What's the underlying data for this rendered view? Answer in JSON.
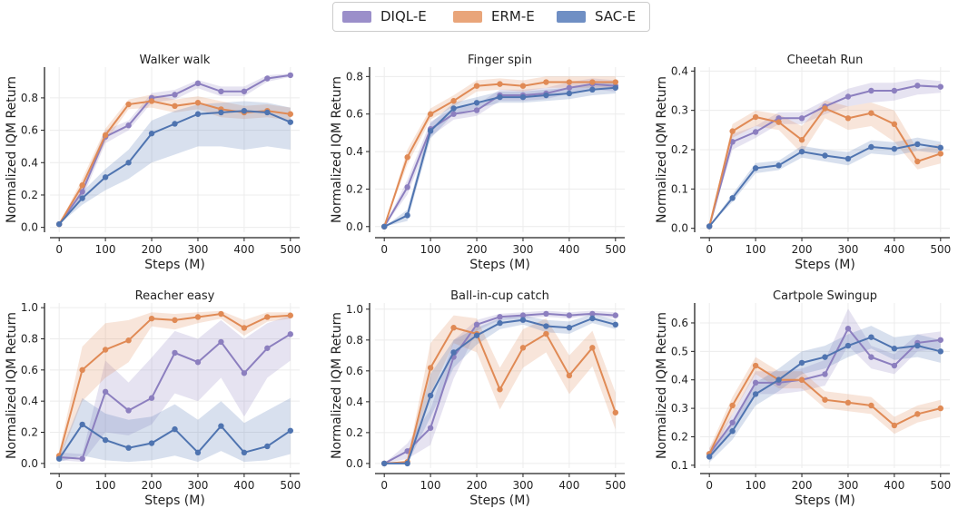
{
  "legend": {
    "placement": "top-center",
    "items": [
      {
        "label": "DIQL-E",
        "color": "#8c7fbf"
      },
      {
        "label": "ERM-E",
        "color": "#e08a55"
      },
      {
        "label": "SAC-E",
        "color": "#4f74b0"
      }
    ]
  },
  "chart_data": [
    {
      "type": "line",
      "title": "Walker walk",
      "xlabel": "Steps (M)",
      "ylabel": "Normalized IQM Return",
      "x": [
        0,
        50,
        100,
        150,
        200,
        250,
        300,
        350,
        400,
        450,
        500
      ],
      "xlim": [
        -20,
        520
      ],
      "xticks": [
        0,
        100,
        200,
        300,
        400,
        500
      ],
      "ylim": [
        -0.03,
        0.99
      ],
      "yticks": [
        0.0,
        0.2,
        0.4,
        0.6,
        0.8
      ],
      "ytick_labels": [
        "0.0",
        "0.2",
        "0.4",
        "0.6",
        "0.8"
      ],
      "grid": true,
      "series": [
        {
          "name": "DIQL-E",
          "values": [
            0.02,
            0.22,
            0.56,
            0.63,
            0.8,
            0.82,
            0.89,
            0.84,
            0.84,
            0.92,
            0.94
          ],
          "lower": [
            0.02,
            0.18,
            0.52,
            0.6,
            0.77,
            0.79,
            0.86,
            0.81,
            0.81,
            0.9,
            0.93
          ],
          "upper": [
            0.02,
            0.26,
            0.6,
            0.66,
            0.83,
            0.85,
            0.91,
            0.87,
            0.87,
            0.94,
            0.95
          ]
        },
        {
          "name": "ERM-E",
          "values": [
            0.02,
            0.26,
            0.57,
            0.76,
            0.78,
            0.75,
            0.77,
            0.73,
            0.71,
            0.72,
            0.7
          ],
          "lower": [
            0.02,
            0.22,
            0.53,
            0.73,
            0.74,
            0.71,
            0.73,
            0.68,
            0.67,
            0.68,
            0.66
          ],
          "upper": [
            0.02,
            0.3,
            0.61,
            0.79,
            0.82,
            0.79,
            0.81,
            0.78,
            0.75,
            0.76,
            0.74
          ]
        },
        {
          "name": "SAC-E",
          "values": [
            0.02,
            0.18,
            0.31,
            0.4,
            0.58,
            0.64,
            0.7,
            0.71,
            0.72,
            0.71,
            0.65
          ],
          "lower": [
            0.02,
            0.14,
            0.23,
            0.3,
            0.4,
            0.45,
            0.5,
            0.5,
            0.48,
            0.5,
            0.48
          ],
          "upper": [
            0.02,
            0.22,
            0.36,
            0.48,
            0.66,
            0.72,
            0.76,
            0.77,
            0.78,
            0.77,
            0.74
          ]
        }
      ]
    },
    {
      "type": "line",
      "title": "Finger spin",
      "xlabel": "Steps (M)",
      "ylabel": "Normalized IQM Return",
      "x": [
        0,
        50,
        100,
        150,
        200,
        250,
        300,
        350,
        400,
        450,
        500
      ],
      "xlim": [
        -20,
        520
      ],
      "xticks": [
        0,
        100,
        200,
        300,
        400,
        500
      ],
      "ylim": [
        -0.03,
        0.85
      ],
      "yticks": [
        0.0,
        0.2,
        0.4,
        0.6,
        0.8
      ],
      "ytick_labels": [
        "0.0",
        "0.2",
        "0.4",
        "0.6",
        "0.8"
      ],
      "grid": true,
      "series": [
        {
          "name": "DIQL-E",
          "values": [
            0.0,
            0.21,
            0.52,
            0.6,
            0.62,
            0.7,
            0.7,
            0.71,
            0.74,
            0.76,
            0.75
          ],
          "lower": [
            0.0,
            0.17,
            0.48,
            0.57,
            0.59,
            0.67,
            0.67,
            0.68,
            0.71,
            0.73,
            0.72
          ],
          "upper": [
            0.0,
            0.25,
            0.56,
            0.63,
            0.65,
            0.73,
            0.73,
            0.74,
            0.77,
            0.79,
            0.78
          ]
        },
        {
          "name": "ERM-E",
          "values": [
            0.0,
            0.37,
            0.6,
            0.67,
            0.75,
            0.76,
            0.75,
            0.77,
            0.77,
            0.77,
            0.77
          ],
          "lower": [
            0.0,
            0.33,
            0.57,
            0.64,
            0.72,
            0.73,
            0.72,
            0.74,
            0.74,
            0.74,
            0.74
          ],
          "upper": [
            0.0,
            0.41,
            0.63,
            0.7,
            0.78,
            0.79,
            0.78,
            0.8,
            0.8,
            0.8,
            0.8
          ]
        },
        {
          "name": "SAC-E",
          "values": [
            0.0,
            0.06,
            0.51,
            0.63,
            0.66,
            0.69,
            0.69,
            0.7,
            0.71,
            0.73,
            0.74
          ],
          "lower": [
            0.0,
            0.03,
            0.47,
            0.6,
            0.63,
            0.66,
            0.66,
            0.67,
            0.68,
            0.7,
            0.71
          ],
          "upper": [
            0.0,
            0.09,
            0.55,
            0.66,
            0.69,
            0.72,
            0.72,
            0.73,
            0.74,
            0.76,
            0.77
          ]
        }
      ]
    },
    {
      "type": "line",
      "title": "Cheetah Run",
      "xlabel": "Steps (M)",
      "ylabel": "Normalized IQM Return",
      "x": [
        0,
        50,
        100,
        150,
        200,
        250,
        300,
        350,
        400,
        450,
        500
      ],
      "xlim": [
        -20,
        520
      ],
      "xticks": [
        0,
        100,
        200,
        300,
        400,
        500
      ],
      "ylim": [
        -0.01,
        0.41
      ],
      "yticks": [
        0.0,
        0.1,
        0.2,
        0.3,
        0.4
      ],
      "ytick_labels": [
        "0.0",
        "0.1",
        "0.2",
        "0.3",
        "0.4"
      ],
      "grid": true,
      "series": [
        {
          "name": "DIQL-E",
          "values": [
            0.005,
            0.22,
            0.245,
            0.28,
            0.28,
            0.31,
            0.335,
            0.35,
            0.35,
            0.363,
            0.36
          ],
          "lower": [
            0.005,
            0.2,
            0.23,
            0.265,
            0.265,
            0.29,
            0.31,
            0.32,
            0.325,
            0.34,
            0.345
          ],
          "upper": [
            0.005,
            0.24,
            0.26,
            0.295,
            0.295,
            0.325,
            0.355,
            0.37,
            0.37,
            0.38,
            0.375
          ]
        },
        {
          "name": "ERM-E",
          "values": [
            0.005,
            0.247,
            0.283,
            0.27,
            0.225,
            0.305,
            0.28,
            0.293,
            0.265,
            0.17,
            0.19
          ],
          "lower": [
            0.005,
            0.23,
            0.26,
            0.25,
            0.19,
            0.28,
            0.25,
            0.26,
            0.22,
            0.15,
            0.165
          ],
          "upper": [
            0.005,
            0.265,
            0.3,
            0.29,
            0.26,
            0.325,
            0.31,
            0.32,
            0.3,
            0.2,
            0.215
          ]
        },
        {
          "name": "SAC-E",
          "values": [
            0.005,
            0.077,
            0.153,
            0.16,
            0.195,
            0.185,
            0.177,
            0.207,
            0.202,
            0.214,
            0.205
          ],
          "lower": [
            0.005,
            0.067,
            0.14,
            0.148,
            0.18,
            0.17,
            0.16,
            0.19,
            0.185,
            0.197,
            0.19
          ],
          "upper": [
            0.005,
            0.087,
            0.166,
            0.172,
            0.21,
            0.2,
            0.194,
            0.224,
            0.219,
            0.231,
            0.22
          ]
        }
      ]
    },
    {
      "type": "line",
      "title": "Reacher easy",
      "xlabel": "Steps (M)",
      "ylabel": "Normalized IQM Return",
      "x": [
        0,
        50,
        100,
        150,
        200,
        250,
        300,
        350,
        400,
        450,
        500
      ],
      "xlim": [
        -20,
        520
      ],
      "xticks": [
        0,
        100,
        200,
        300,
        400,
        500
      ],
      "ylim": [
        -0.03,
        1.03
      ],
      "yticks": [
        0.0,
        0.2,
        0.4,
        0.6,
        0.8,
        1.0
      ],
      "ytick_labels": [
        "0.0",
        "0.2",
        "0.4",
        "0.6",
        "0.8",
        "1.0"
      ],
      "grid": true,
      "series": [
        {
          "name": "DIQL-E",
          "values": [
            0.04,
            0.03,
            0.46,
            0.34,
            0.42,
            0.71,
            0.65,
            0.78,
            0.58,
            0.74,
            0.83
          ],
          "lower": [
            0.02,
            0.01,
            0.2,
            0.18,
            0.25,
            0.45,
            0.4,
            0.55,
            0.3,
            0.55,
            0.66
          ],
          "upper": [
            0.07,
            0.06,
            0.66,
            0.52,
            0.68,
            0.85,
            0.8,
            0.92,
            0.8,
            0.9,
            0.95
          ]
        },
        {
          "name": "ERM-E",
          "values": [
            0.05,
            0.6,
            0.73,
            0.79,
            0.93,
            0.92,
            0.94,
            0.96,
            0.87,
            0.94,
            0.95
          ],
          "lower": [
            0.02,
            0.4,
            0.55,
            0.65,
            0.88,
            0.86,
            0.9,
            0.93,
            0.82,
            0.91,
            0.93
          ],
          "upper": [
            0.08,
            0.75,
            0.9,
            0.92,
            0.97,
            0.96,
            0.97,
            0.98,
            0.92,
            0.97,
            0.97
          ]
        },
        {
          "name": "SAC-E",
          "values": [
            0.03,
            0.25,
            0.15,
            0.1,
            0.13,
            0.22,
            0.07,
            0.24,
            0.07,
            0.11,
            0.21
          ],
          "lower": [
            0.01,
            0.05,
            0.02,
            0.01,
            0.02,
            0.05,
            0.01,
            0.08,
            0.01,
            0.02,
            0.06
          ],
          "upper": [
            0.05,
            0.42,
            0.32,
            0.28,
            0.3,
            0.38,
            0.28,
            0.4,
            0.26,
            0.34,
            0.42
          ]
        }
      ]
    },
    {
      "type": "line",
      "title": "Ball-in-cup catch",
      "xlabel": "Steps (M)",
      "ylabel": "Normalized IQM Return",
      "x": [
        0,
        50,
        100,
        150,
        200,
        250,
        300,
        350,
        400,
        450,
        500
      ],
      "xlim": [
        -20,
        520
      ],
      "xticks": [
        0,
        100,
        200,
        300,
        400,
        500
      ],
      "ylim": [
        -0.03,
        1.04
      ],
      "yticks": [
        0.0,
        0.2,
        0.4,
        0.6,
        0.8,
        1.0
      ],
      "ytick_labels": [
        "0.0",
        "0.2",
        "0.4",
        "0.6",
        "0.8",
        "1.0"
      ],
      "grid": true,
      "series": [
        {
          "name": "DIQL-E",
          "values": [
            0.0,
            0.08,
            0.23,
            0.69,
            0.9,
            0.95,
            0.96,
            0.97,
            0.96,
            0.97,
            0.96
          ],
          "lower": [
            0.0,
            0.03,
            0.12,
            0.55,
            0.86,
            0.93,
            0.94,
            0.95,
            0.94,
            0.96,
            0.94
          ],
          "upper": [
            0.0,
            0.13,
            0.35,
            0.8,
            0.93,
            0.97,
            0.98,
            0.99,
            0.98,
            0.99,
            0.98
          ]
        },
        {
          "name": "ERM-E",
          "values": [
            0.0,
            0.01,
            0.62,
            0.88,
            0.84,
            0.48,
            0.75,
            0.84,
            0.57,
            0.75,
            0.33
          ],
          "lower": [
            0.0,
            0.0,
            0.45,
            0.78,
            0.72,
            0.35,
            0.62,
            0.72,
            0.45,
            0.63,
            0.22
          ],
          "upper": [
            0.0,
            0.02,
            0.78,
            0.96,
            0.94,
            0.62,
            0.87,
            0.94,
            0.7,
            0.86,
            0.46
          ]
        },
        {
          "name": "SAC-E",
          "values": [
            0.0,
            0.0,
            0.44,
            0.72,
            0.83,
            0.91,
            0.93,
            0.89,
            0.88,
            0.94,
            0.9
          ],
          "lower": [
            0.0,
            0.0,
            0.3,
            0.62,
            0.77,
            0.87,
            0.9,
            0.85,
            0.84,
            0.91,
            0.87
          ],
          "upper": [
            0.0,
            0.01,
            0.58,
            0.8,
            0.88,
            0.94,
            0.96,
            0.93,
            0.92,
            0.97,
            0.93
          ]
        }
      ]
    },
    {
      "type": "line",
      "title": "Cartpole Swingup",
      "xlabel": "Steps (M)",
      "ylabel": "Normalized IQM Return",
      "x": [
        0,
        50,
        100,
        150,
        200,
        250,
        300,
        350,
        400,
        450,
        500
      ],
      "xlim": [
        -20,
        520
      ],
      "xticks": [
        0,
        100,
        200,
        300,
        400,
        500
      ],
      "ylim": [
        0.09,
        0.67
      ],
      "yticks": [
        0.1,
        0.2,
        0.3,
        0.4,
        0.5,
        0.6
      ],
      "ytick_labels": [
        "0.1",
        "0.2",
        "0.3",
        "0.4",
        "0.5",
        "0.6"
      ],
      "grid": true,
      "series": [
        {
          "name": "DIQL-E",
          "values": [
            0.14,
            0.25,
            0.39,
            0.39,
            0.4,
            0.42,
            0.58,
            0.48,
            0.45,
            0.53,
            0.54
          ],
          "lower": [
            0.12,
            0.22,
            0.35,
            0.35,
            0.36,
            0.38,
            0.52,
            0.44,
            0.42,
            0.5,
            0.51
          ],
          "upper": [
            0.16,
            0.28,
            0.43,
            0.43,
            0.44,
            0.47,
            0.65,
            0.52,
            0.49,
            0.56,
            0.57
          ]
        },
        {
          "name": "ERM-E",
          "values": [
            0.14,
            0.31,
            0.45,
            0.4,
            0.4,
            0.33,
            0.32,
            0.31,
            0.24,
            0.28,
            0.3
          ],
          "lower": [
            0.12,
            0.28,
            0.42,
            0.37,
            0.37,
            0.3,
            0.29,
            0.28,
            0.21,
            0.25,
            0.27
          ],
          "upper": [
            0.16,
            0.34,
            0.48,
            0.43,
            0.43,
            0.36,
            0.35,
            0.34,
            0.27,
            0.31,
            0.33
          ]
        },
        {
          "name": "SAC-E",
          "values": [
            0.13,
            0.22,
            0.35,
            0.4,
            0.46,
            0.48,
            0.52,
            0.55,
            0.51,
            0.52,
            0.5
          ],
          "lower": [
            0.11,
            0.19,
            0.31,
            0.36,
            0.42,
            0.44,
            0.48,
            0.51,
            0.47,
            0.48,
            0.46
          ],
          "upper": [
            0.15,
            0.25,
            0.39,
            0.44,
            0.5,
            0.52,
            0.56,
            0.59,
            0.55,
            0.56,
            0.54
          ]
        }
      ]
    }
  ]
}
